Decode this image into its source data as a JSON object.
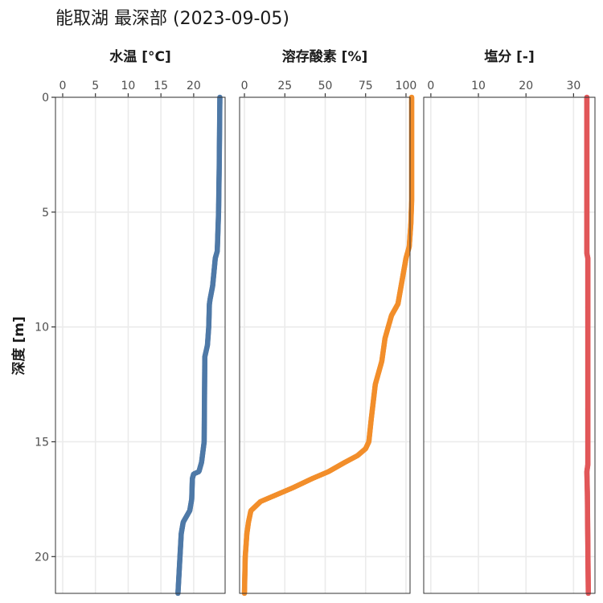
{
  "title": "能取湖 最深部 (2023-09-05)",
  "chart_data": {
    "type": "scatter",
    "ylabel": "深度 [m]",
    "y_reversed": true,
    "ylim": [
      0,
      21.6
    ],
    "yticks": [
      0,
      5,
      10,
      15,
      20
    ],
    "panels": [
      {
        "id": "temp",
        "title": "水温 [°C]",
        "xlim": [
          -1.1,
          24.8
        ],
        "xticks": [
          0,
          5,
          10,
          15,
          20
        ],
        "color": "#4e79a7",
        "profile": [
          [
            0,
            24.0
          ],
          [
            3,
            23.9
          ],
          [
            5,
            23.8
          ],
          [
            6.7,
            23.6
          ],
          [
            7,
            23.3
          ],
          [
            8.2,
            22.9
          ],
          [
            8.8,
            22.5
          ],
          [
            9,
            22.4
          ],
          [
            10,
            22.3
          ],
          [
            10.8,
            22.1
          ],
          [
            11.3,
            21.7
          ],
          [
            15,
            21.6
          ],
          [
            15.9,
            21.2
          ],
          [
            16.3,
            20.8
          ],
          [
            16.4,
            20.0
          ],
          [
            16.6,
            19.8
          ],
          [
            17.5,
            19.7
          ],
          [
            18,
            19.4
          ],
          [
            18.5,
            18.4
          ],
          [
            19,
            18.1
          ],
          [
            21.6,
            17.6
          ]
        ]
      },
      {
        "id": "do",
        "title": "溶存酸素 [%]",
        "xlim": [
          -3,
          102.5
        ],
        "xticks": [
          0,
          25,
          50,
          75,
          100
        ],
        "color": "#f28e2b",
        "profile": [
          [
            0,
            103.5
          ],
          [
            4.5,
            103.5
          ],
          [
            5.5,
            103
          ],
          [
            6.5,
            102
          ],
          [
            7,
            100
          ],
          [
            8,
            97.5
          ],
          [
            9,
            95
          ],
          [
            9.5,
            91
          ],
          [
            10.5,
            87
          ],
          [
            11.5,
            85
          ],
          [
            12.5,
            81
          ],
          [
            14,
            78.5
          ],
          [
            15,
            77
          ],
          [
            15.3,
            75
          ],
          [
            15.6,
            70
          ],
          [
            15.9,
            62
          ],
          [
            16.3,
            52
          ],
          [
            16.6,
            42
          ],
          [
            17,
            30
          ],
          [
            17.3,
            20
          ],
          [
            17.6,
            10
          ],
          [
            18,
            4
          ],
          [
            18.5,
            2.5
          ],
          [
            19,
            1.5
          ],
          [
            20,
            0.5
          ],
          [
            21.6,
            0
          ]
        ]
      },
      {
        "id": "sal",
        "title": "塩分 [-]",
        "xlim": [
          -1.5,
          34.5
        ],
        "xticks": [
          0,
          10,
          20,
          30
        ],
        "color": "#e15759",
        "profile": [
          [
            0,
            32.8
          ],
          [
            6.8,
            32.8
          ],
          [
            7,
            33.0
          ],
          [
            16,
            33.0
          ],
          [
            16.3,
            32.8
          ],
          [
            17.2,
            32.9
          ],
          [
            21.6,
            33.1
          ]
        ]
      }
    ]
  }
}
